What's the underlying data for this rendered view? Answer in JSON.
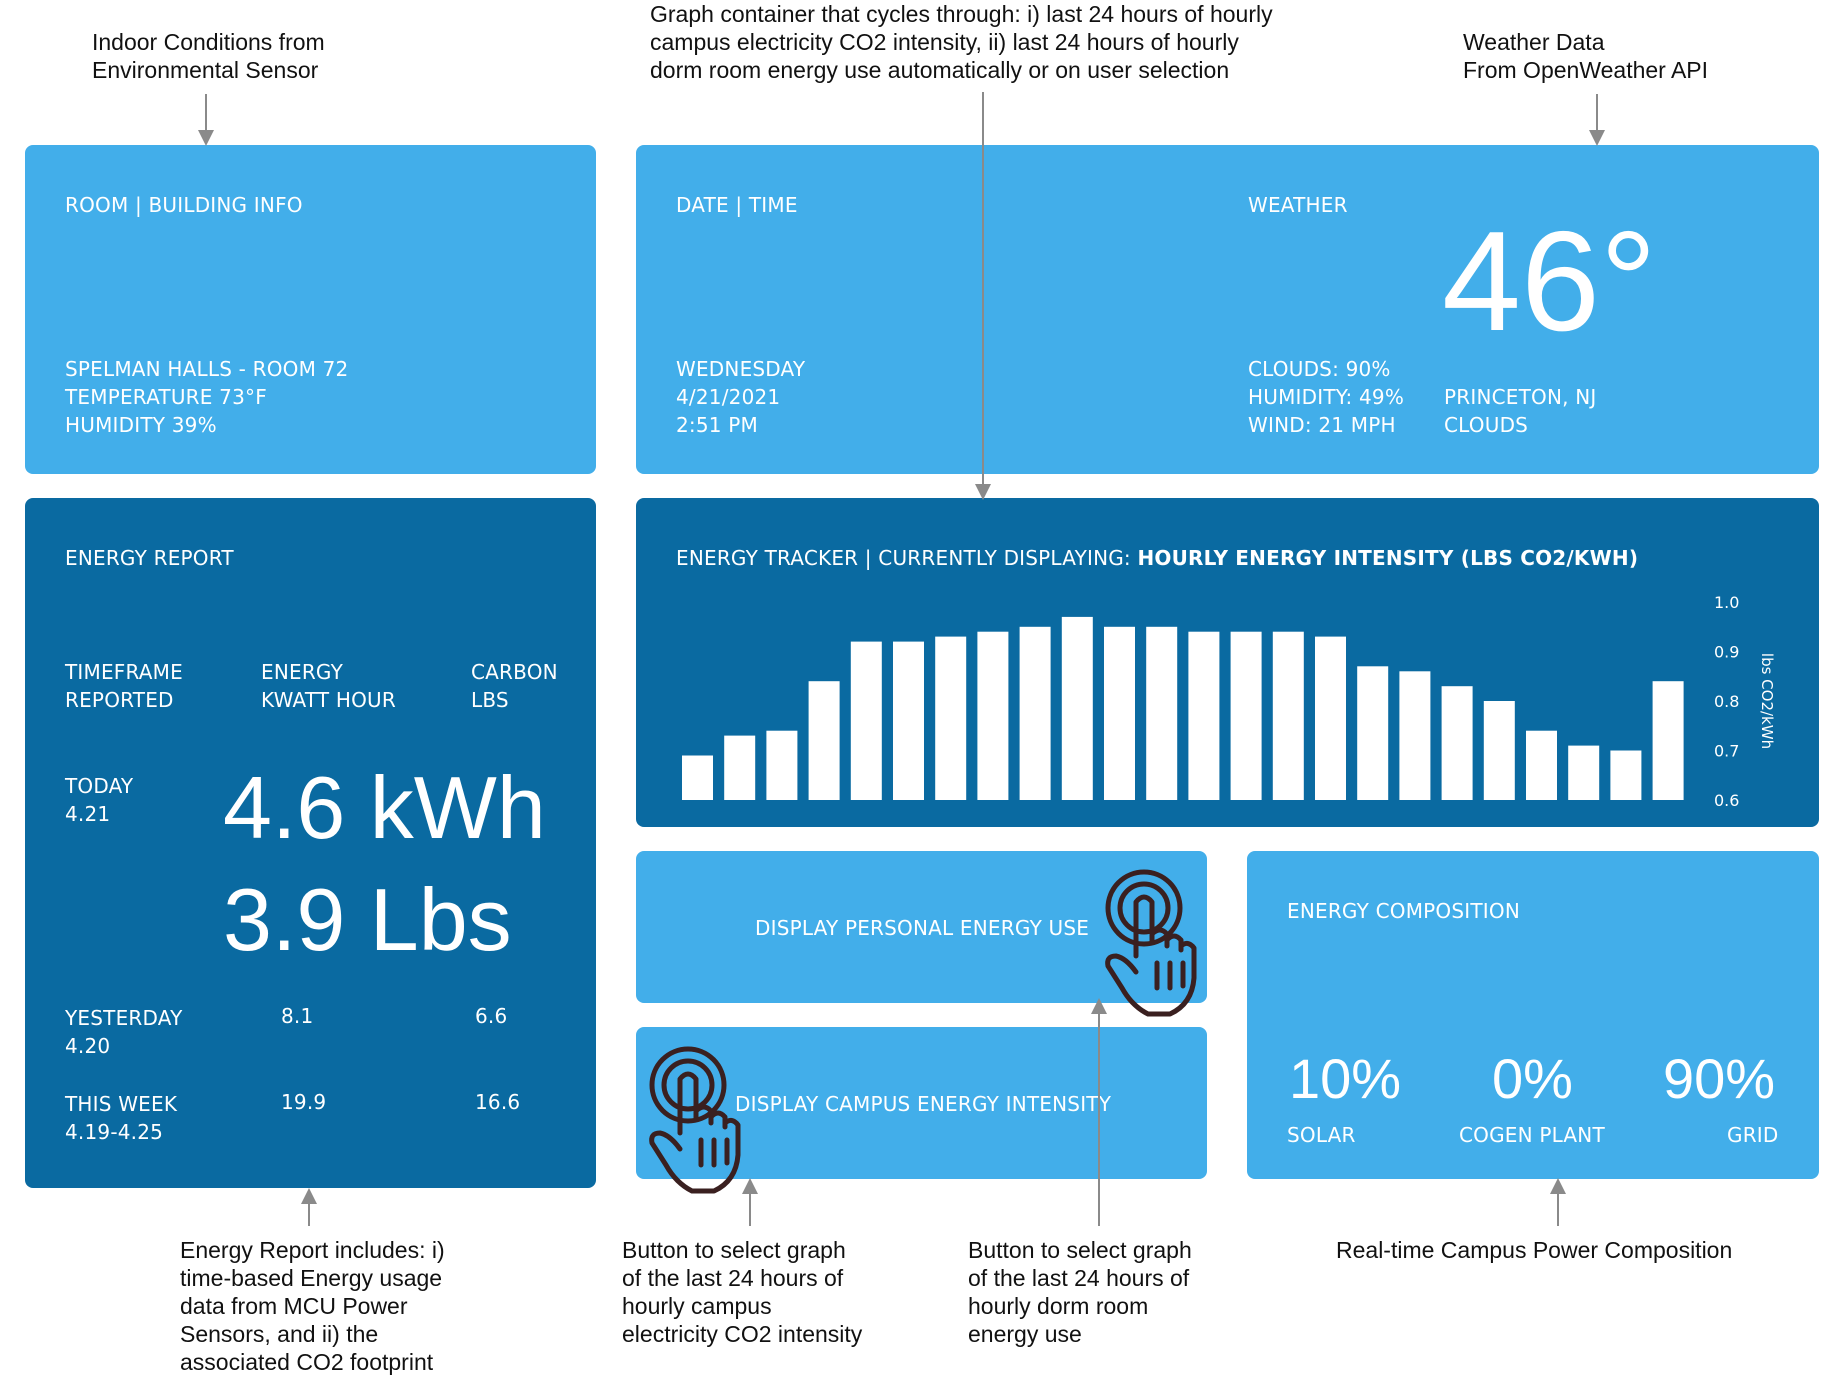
{
  "annotations": {
    "indoor": [
      "Indoor Conditions from",
      "Environmental Sensor"
    ],
    "graph": [
      "Graph container that cycles through: i) last 24 hours of hourly",
      "campus electricity CO2 intensity, ii) last 24 hours of hourly",
      "dorm room energy use automatically  or on user selection"
    ],
    "weather": [
      "Weather Data",
      "From OpenWeather API"
    ],
    "energy_report": [
      "Energy Report includes: i)",
      "time-based Energy usage",
      "data from MCU Power",
      "Sensors, and ii) the",
      "associated CO2 footprint"
    ],
    "campus_button": [
      "Button to select graph",
      "of the last 24 hours of",
      "hourly campus",
      "electricity CO2 intensity"
    ],
    "dorm_button": [
      "Button to select graph",
      "of the last 24 hours of",
      "hourly dorm room",
      "energy use"
    ],
    "composition": [
      "Real-time Campus Power Composition"
    ]
  },
  "room": {
    "title": "ROOM | BUILDING INFO",
    "location": "SPELMAN HALLS - ROOM 72",
    "temperature": "TEMPERATURE 73°F",
    "humidity": "HUMIDITY 39%"
  },
  "datetime": {
    "title": "DATE | TIME",
    "day": "WEDNESDAY",
    "date": "4/21/2021",
    "time": "2:51 PM"
  },
  "weather": {
    "title": "WEATHER",
    "temperature": "46°",
    "clouds": "CLOUDS: 90%",
    "humidity": "HUMIDITY: 49%",
    "wind": "WIND: 21 MPH",
    "city": "PRINCETON, NJ",
    "condition": "CLOUDS"
  },
  "energy_report": {
    "title": "ENERGY REPORT",
    "col_timeframe": [
      "TIMEFRAME",
      "REPORTED"
    ],
    "col_energy": [
      "ENERGY",
      "KWATT HOUR"
    ],
    "col_carbon": [
      "CARBON",
      "LBS"
    ],
    "today_label": "TODAY",
    "today_date": "4.21",
    "today_kwh": "4.6 kWh",
    "today_lbs": "3.9 Lbs",
    "yesterday_label": "YESTERDAY",
    "yesterday_date": "4.20",
    "yesterday_kwh": "8.1",
    "yesterday_lbs": "6.6",
    "week_label": "THIS WEEK",
    "week_date": "4.19-4.25",
    "week_kwh": "19.9",
    "week_lbs": "16.6"
  },
  "tracker": {
    "title_prefix": "ENERGY TRACKER | CURRENTLY DISPLAYING: ",
    "title_bold": "HOURLY ENERGY INTENSITY (LBS CO2/KWH)"
  },
  "buttons": {
    "personal": "DISPLAY PERSONAL ENERGY USE",
    "campus": "DISPLAY CAMPUS ENERGY INTENSITY"
  },
  "composition": {
    "title": "ENERGY COMPOSITION",
    "solar_pct": "10%",
    "solar_label": "SOLAR",
    "cogen_pct": "0%",
    "cogen_label": "COGEN PLANT",
    "grid_pct": "90%",
    "grid_label": "GRID"
  },
  "colors": {
    "light_panel": "#42aeea",
    "dark_panel": "#0a6aa1",
    "hand_icon": "#3a2020"
  },
  "chart_data": {
    "type": "bar",
    "ylabel": "lbs CO2/kWh",
    "ylim": [
      0.6,
      1.0
    ],
    "yticks": [
      "1.0",
      "0.9",
      "0.8",
      "0.7",
      "0.6"
    ],
    "values": [
      0.69,
      0.73,
      0.74,
      0.84,
      0.92,
      0.92,
      0.93,
      0.94,
      0.95,
      0.97,
      0.95,
      0.95,
      0.94,
      0.94,
      0.94,
      0.93,
      0.87,
      0.86,
      0.83,
      0.8,
      0.74,
      0.71,
      0.7,
      0.84
    ]
  }
}
